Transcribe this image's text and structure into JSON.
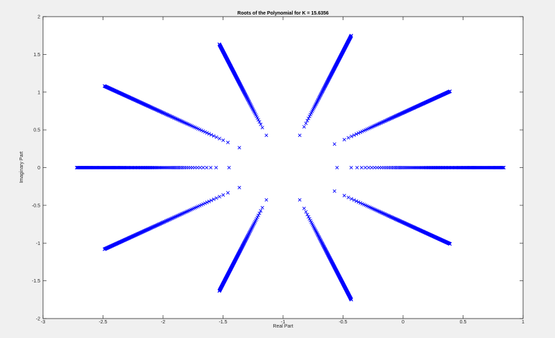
{
  "chart_data": {
    "type": "scatter",
    "title": "Roots of the Polynomial for K = 15.6356",
    "xlabel": "Real Part",
    "ylabel": "Imaginary Part",
    "xlim": [
      -3,
      1
    ],
    "ylim": [
      -2,
      2
    ],
    "xticks": [
      -3,
      -2.5,
      -2,
      -1.5,
      -1,
      -0.5,
      0,
      0.5,
      1
    ],
    "xtick_labels": [
      "-3",
      "-2.5",
      "-2",
      "-1.5",
      "-1",
      "-0.5",
      "0",
      "0.5",
      "1"
    ],
    "yticks": [
      -2,
      -1.5,
      -1,
      -0.5,
      0,
      0.5,
      1,
      1.5,
      2
    ],
    "ytick_labels": [
      "-2",
      "-1.5",
      "-1",
      "-0.5",
      "0",
      "0.5",
      "1",
      "1.5",
      "2"
    ],
    "grid": false,
    "marker": "x",
    "marker_color": "#0000ff",
    "center": [
      -1,
      0
    ],
    "branches": [
      {
        "angle_deg": 0,
        "r_start": 0.45,
        "r_end": 1.84
      },
      {
        "angle_deg": 36,
        "r_start": 0.53,
        "r_end": 1.72
      },
      {
        "angle_deg": 72,
        "r_start": 0.45,
        "r_end": 1.84
      },
      {
        "angle_deg": 108,
        "r_start": 0.45,
        "r_end": 1.72
      },
      {
        "angle_deg": 144,
        "r_start": 0.45,
        "r_end": 1.84
      },
      {
        "angle_deg": 180,
        "r_start": 0.45,
        "r_end": 1.72
      },
      {
        "angle_deg": 216,
        "r_start": 0.45,
        "r_end": 1.84
      },
      {
        "angle_deg": 252,
        "r_start": 0.45,
        "r_end": 1.72
      },
      {
        "angle_deg": 288,
        "r_start": 0.45,
        "r_end": 1.84
      },
      {
        "angle_deg": 324,
        "r_start": 0.53,
        "r_end": 1.72
      }
    ]
  }
}
